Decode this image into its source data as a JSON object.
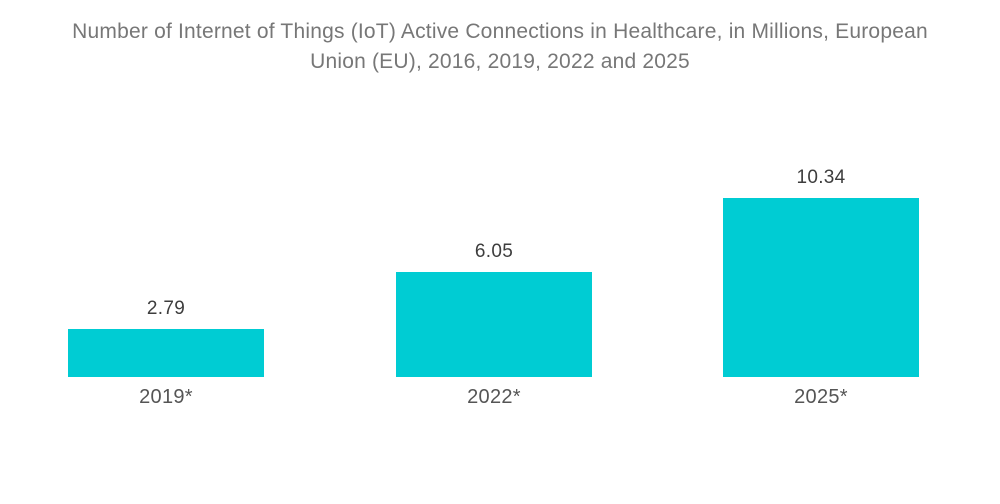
{
  "chart_data": {
    "type": "bar",
    "title": "Number of Internet of Things (IoT) Active Connections in Healthcare, in Millions, European Union (EU), 2016, 2019, 2022 and 2025",
    "title_lines": [
      "Number of Internet of Things (IoT) Active Connections in Healthcare, in Millions, European",
      "Union (EU), 2016, 2019, 2022 and 2025"
    ],
    "categories": [
      "2019*",
      "2022*",
      "2025*"
    ],
    "values": [
      2.79,
      6.05,
      10.34
    ],
    "value_labels": [
      "2.79",
      "6.05",
      "10.34"
    ],
    "xlabel": "",
    "ylabel": "",
    "ylim": [
      0,
      10.34
    ],
    "grid": false,
    "legend": false,
    "bar_color": "#00CCD3",
    "background_color": "#ffffff",
    "title_color": "#777777",
    "value_label_color": "#3d3d3d",
    "category_label_color": "#555555"
  }
}
